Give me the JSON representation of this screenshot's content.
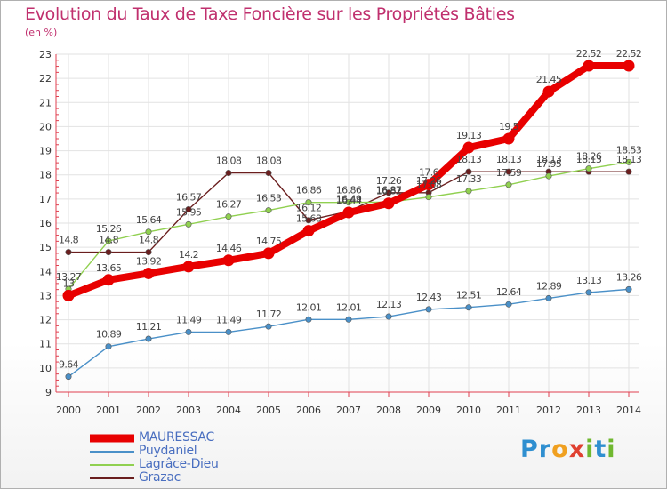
{
  "title": "Evolution du Taux de Taxe Foncière sur les Propriétés Bâties",
  "subtitle": "(en %)",
  "logo": {
    "letters": [
      "P",
      "r",
      "o",
      "x",
      "i",
      "t",
      "i"
    ],
    "colors": [
      "#2f8fd0",
      "#2f8fd0",
      "#f0a020",
      "#e04030",
      "#70b830",
      "#2f8fd0",
      "#70b830"
    ]
  },
  "colors": {
    "MAURESSAC": "#e80000",
    "Puydaniel": "#4a90c8",
    "Lagrâce-Dieu": "#90d050",
    "Grazac": "#6a1e1e",
    "title": "#c0306e",
    "legend_text": "#4a6fc0",
    "axis": "#e04050"
  },
  "chart_data": {
    "type": "line",
    "title": "Evolution du Taux de Taxe Foncière sur les Propriétés Bâties",
    "ylabel": "(en %)",
    "xlabel": "",
    "x": [
      "2000",
      "2001",
      "2002",
      "2003",
      "2004",
      "2005",
      "2006",
      "2007",
      "2008",
      "2009",
      "2010",
      "2011",
      "2012",
      "2013",
      "2014"
    ],
    "ylim": [
      9,
      23
    ],
    "yticks": [
      9,
      10,
      11,
      12,
      13,
      14,
      15,
      16,
      17,
      18,
      19,
      20,
      21,
      22,
      23
    ],
    "grid": true,
    "legend": "bottom-left",
    "series": [
      {
        "name": "Grazac",
        "values": [
          14.8,
          14.8,
          14.8,
          16.57,
          18.08,
          18.08,
          16.12,
          16.49,
          17.26,
          17.26,
          18.13,
          18.13,
          18.13,
          18.13,
          18.13
        ],
        "labels": [
          "14.8",
          "14.8",
          "14.8",
          "16.57",
          "18.08",
          "18.08",
          "16.12",
          "16.49",
          "17.26",
          "17.26",
          "18.13",
          "18.13",
          "18.13",
          "18.13",
          "18.13"
        ]
      },
      {
        "name": "Lagrâce-Dieu",
        "values": [
          13.27,
          15.26,
          15.64,
          15.95,
          16.27,
          16.53,
          16.86,
          16.86,
          16.87,
          17.08,
          17.33,
          17.59,
          17.95,
          18.26,
          18.53
        ],
        "labels": [
          "13.27",
          "15.26",
          "15.64",
          "15.95",
          "16.27",
          "16.53",
          "16.86",
          "16.86",
          "16.87",
          "17.08",
          "17.33",
          "17.59",
          "17.95",
          "18.26",
          "18.53"
        ]
      },
      {
        "name": "Puydaniel",
        "values": [
          9.64,
          10.89,
          11.21,
          11.49,
          11.49,
          11.72,
          12.01,
          12.01,
          12.13,
          12.43,
          12.51,
          12.64,
          12.89,
          13.13,
          13.26
        ],
        "labels": [
          "9.64",
          "10.89",
          "11.21",
          "11.49",
          "11.49",
          "11.72",
          "12.01",
          "12.01",
          "12.13",
          "12.43",
          "12.51",
          "12.64",
          "12.89",
          "13.13",
          "13.26"
        ]
      },
      {
        "name": "MAURESSAC",
        "values": [
          13.0,
          13.65,
          13.92,
          14.2,
          14.46,
          14.75,
          15.68,
          16.44,
          16.82,
          17.6,
          19.13,
          19.5,
          21.45,
          22.52,
          22.52
        ],
        "labels": [
          "13",
          "13.65",
          "13.92",
          "14.2",
          "14.46",
          "14.75",
          "15.68",
          "16.44",
          "16.82",
          "17.6",
          "19.13",
          "19.5",
          "21.45",
          "22.52",
          "22.52"
        ]
      }
    ]
  },
  "legend": {
    "items": [
      "MAURESSAC",
      "Puydaniel",
      "Lagrâce-Dieu",
      "Grazac"
    ]
  }
}
